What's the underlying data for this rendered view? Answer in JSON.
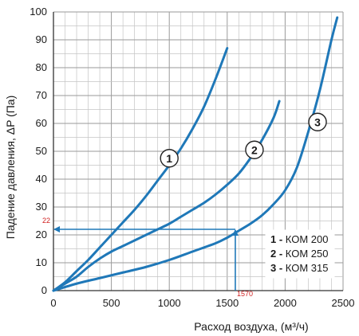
{
  "chart_data": {
    "type": "line",
    "title": "",
    "xlabel": "Расход воздуха, (м³/ч)",
    "ylabel": "Падение давления, ΔP (Па)",
    "xlim": [
      0,
      2500
    ],
    "ylim": [
      0,
      100
    ],
    "x_ticks": [
      0,
      500,
      1000,
      1500,
      2000,
      2500
    ],
    "y_ticks": [
      0,
      10,
      20,
      30,
      40,
      50,
      60,
      70,
      80,
      90,
      100
    ],
    "grid": true,
    "line_color": "#1f78b8",
    "series": [
      {
        "name": "КОМ 200",
        "label": "1",
        "x": [
          0,
          100,
          200,
          300,
          400,
          500,
          600,
          700,
          800,
          900,
          1000,
          1100,
          1200,
          1300,
          1400,
          1500
        ],
        "y": [
          0,
          3,
          7,
          11,
          15.5,
          20,
          24.5,
          29,
          34,
          39.5,
          45,
          51,
          58,
          66,
          76,
          87
        ]
      },
      {
        "name": "КОМ 250",
        "label": "2",
        "x": [
          0,
          100,
          200,
          300,
          400,
          500,
          600,
          700,
          800,
          900,
          1000,
          1100,
          1200,
          1300,
          1400,
          1500,
          1600,
          1700,
          1800,
          1900,
          1950
        ],
        "y": [
          0,
          2.5,
          5,
          8.5,
          11.5,
          14,
          16,
          18,
          20,
          22,
          24,
          26.5,
          29,
          31.5,
          34.5,
          38,
          42,
          47.5,
          54,
          62,
          68
        ]
      },
      {
        "name": "КОМ 315",
        "label": "3",
        "x": [
          0,
          200,
          400,
          600,
          800,
          1000,
          1200,
          1400,
          1500,
          1600,
          1700,
          1800,
          1900,
          2000,
          2100,
          2200,
          2300,
          2400,
          2450
        ],
        "y": [
          0,
          2.5,
          4.5,
          6.5,
          8.5,
          11,
          14,
          17,
          19,
          21.5,
          24,
          27,
          31,
          36,
          44,
          57,
          72,
          90,
          98
        ]
      }
    ],
    "curve_labels": [
      {
        "label": "1",
        "x": 1000,
        "y": 47.5
      },
      {
        "label": "2",
        "x": 1735,
        "y": 50.5
      },
      {
        "label": "3",
        "x": 2280,
        "y": 60.5
      }
    ],
    "annotation": {
      "x_value": 1570,
      "y_value": 22,
      "x_text": "1570",
      "y_text": "22",
      "color": "#d02020"
    },
    "legend": {
      "position": "bottom-right",
      "items": [
        {
          "num": "1 -",
          "text": "КОМ 200"
        },
        {
          "num": "2 -",
          "text": "КОМ 250"
        },
        {
          "num": "3 -",
          "text": "КОМ 315"
        }
      ]
    }
  }
}
